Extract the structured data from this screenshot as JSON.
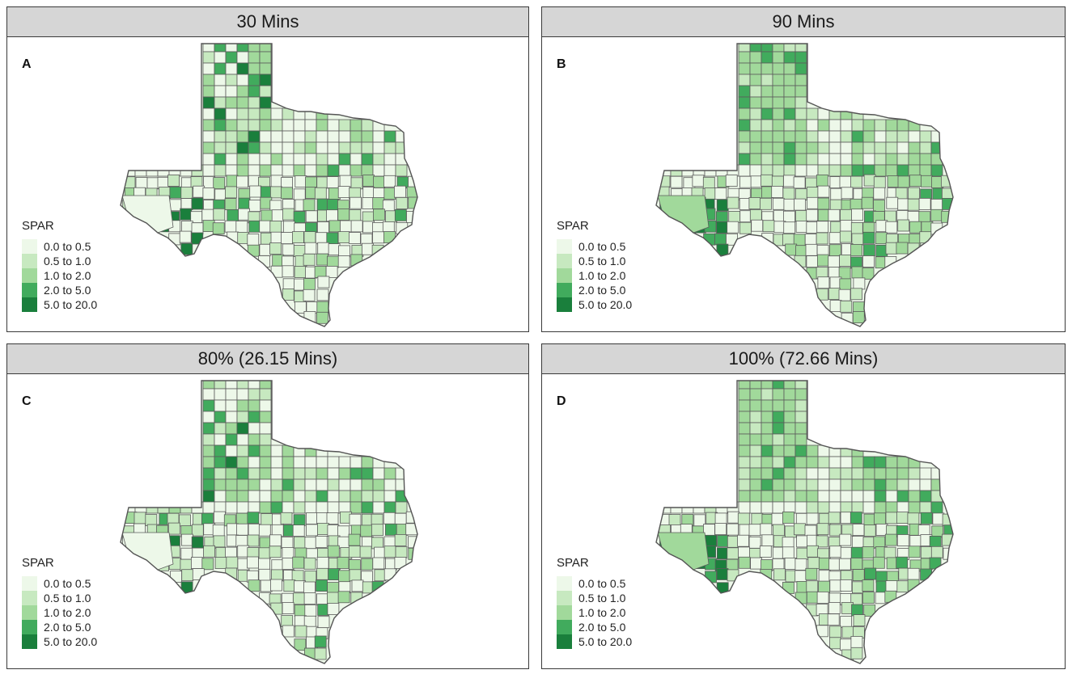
{
  "figure": {
    "legend_title": "SPAR",
    "classes": [
      {
        "label": "0.0 to 0.5",
        "color": "#edf8e9"
      },
      {
        "label": "0.5 to 1.0",
        "color": "#c7e9c0"
      },
      {
        "label": "1.0 to 2.0",
        "color": "#a1d99b"
      },
      {
        "label": "2.0 to 5.0",
        "color": "#41ab5d"
      },
      {
        "label": "5.0 to 20.0",
        "color": "#1a7f3c"
      }
    ],
    "panels": [
      {
        "title": "30 Mins",
        "letter": "A"
      },
      {
        "title": "90 Mins",
        "letter": "B"
      },
      {
        "title": "80% (26.15 Mins)",
        "letter": "C"
      },
      {
        "title": "100% (72.66 Mins)",
        "letter": "D"
      }
    ]
  }
}
